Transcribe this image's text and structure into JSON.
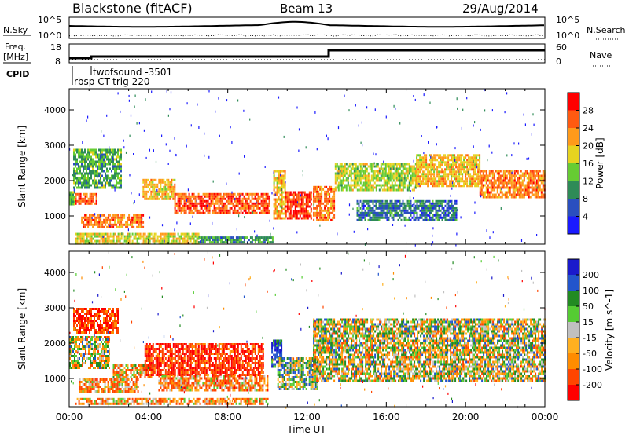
{
  "header": {
    "station": "Blackstone (fitACF)",
    "beam": "Beam 13",
    "date": "29/Aug/2014"
  },
  "noise_panel": {
    "left_label": "N.Sky",
    "left_ticks": [
      "10^5",
      "10^0"
    ],
    "right_ticks": [
      "10^5",
      "10^0"
    ],
    "right_label": "N.Search"
  },
  "freq_panel": {
    "left_label_1": "Freq.",
    "left_label_2": "[MHz]",
    "left_ticks": [
      "18",
      "8"
    ],
    "right_ticks": [
      "60",
      "0"
    ],
    "right_label": "Nave"
  },
  "cpid_panel": {
    "label": "CPID",
    "annotations": [
      "twofsound -3501",
      "rbsp CT-trig 220"
    ]
  },
  "colors": {
    "power_scale": [
      "#1a1aff",
      "#2a4fbf",
      "#2e8b57",
      "#66cc33",
      "#e6d31f",
      "#ff9a1a",
      "#ff5a10",
      "#ff0000"
    ],
    "velocity_scale": [
      "#1a1acc",
      "#2255cc",
      "#228b22",
      "#55cc33",
      "#c0c0c0",
      "#ffb020",
      "#ff8c00",
      "#ff4500",
      "#ff0000"
    ]
  },
  "chart_data": [
    {
      "type": "heatmap",
      "name": "power",
      "xlabel": "",
      "ylabel": "Slant Range [km]",
      "yticks": [
        "1000",
        "2000",
        "3000",
        "4000"
      ],
      "ylim": [
        200,
        4600
      ],
      "xlim": [
        0,
        24
      ],
      "colorbar": {
        "label": "Power [dB]",
        "ticks": [
          "4",
          "8",
          "12",
          "16",
          "20",
          "24",
          "28"
        ],
        "range": [
          0,
          32
        ]
      },
      "bands": [
        {
          "t0": 0.0,
          "t1": 0.3,
          "r0": 1300,
          "r1": 1700,
          "value": 14
        },
        {
          "t0": 0.3,
          "t1": 1.4,
          "r0": 1350,
          "r1": 1650,
          "value": 26
        },
        {
          "t0": 0.2,
          "t1": 2.6,
          "r0": 1800,
          "r1": 2900,
          "value": 12
        },
        {
          "t0": 0.6,
          "t1": 3.7,
          "r0": 650,
          "r1": 1050,
          "value": 24
        },
        {
          "t0": 0.3,
          "t1": 6.5,
          "r0": 200,
          "r1": 520,
          "value": 18
        },
        {
          "t0": 3.7,
          "t1": 5.3,
          "r0": 1450,
          "r1": 2050,
          "value": 20
        },
        {
          "t0": 5.3,
          "t1": 10.1,
          "r0": 1050,
          "r1": 1650,
          "value": 26
        },
        {
          "t0": 6.5,
          "t1": 10.3,
          "r0": 250,
          "r1": 420,
          "value": 10
        },
        {
          "t0": 10.3,
          "t1": 10.9,
          "r0": 950,
          "r1": 2300,
          "value": 20
        },
        {
          "t0": 10.9,
          "t1": 12.2,
          "r0": 900,
          "r1": 1700,
          "value": 28
        },
        {
          "t0": 12.3,
          "t1": 13.4,
          "r0": 850,
          "r1": 1850,
          "value": 24
        },
        {
          "t0": 13.4,
          "t1": 17.5,
          "r0": 1700,
          "r1": 2500,
          "value": 16
        },
        {
          "t0": 14.5,
          "t1": 19.5,
          "r0": 850,
          "r1": 1450,
          "value": 8
        },
        {
          "t0": 17.5,
          "t1": 20.7,
          "r0": 1850,
          "r1": 2750,
          "value": 20
        },
        {
          "t0": 20.7,
          "t1": 24.0,
          "r0": 1550,
          "r1": 2300,
          "value": 24
        }
      ]
    },
    {
      "type": "heatmap",
      "name": "velocity",
      "xlabel": "Time UT",
      "ylabel": "Slant Range [km]",
      "xticks": [
        "00:00",
        "04:00",
        "08:00",
        "12:00",
        "16:00",
        "20:00",
        "00:00"
      ],
      "yticks": [
        "1000",
        "2000",
        "3000",
        "4000"
      ],
      "ylim": [
        200,
        4600
      ],
      "xlim": [
        0,
        24
      ],
      "colorbar": {
        "label": "Velocity [m s^-1]",
        "ticks": [
          "200",
          "100",
          "50",
          "15",
          "-15",
          "-50",
          "-100",
          "-200"
        ]
      },
      "bands": [
        {
          "t0": 0.0,
          "t1": 2.0,
          "r0": 1300,
          "r1": 2200,
          "value": 0
        },
        {
          "t0": 0.2,
          "t1": 2.5,
          "r0": 2300,
          "r1": 3000,
          "value": -180
        },
        {
          "t0": 0.5,
          "t1": 3.5,
          "r0": 600,
          "r1": 1000,
          "value": -80
        },
        {
          "t0": 2.2,
          "t1": 4.2,
          "r0": 1000,
          "r1": 1400,
          "value": -60
        },
        {
          "t0": 3.8,
          "t1": 9.8,
          "r0": 1100,
          "r1": 2000,
          "value": -190
        },
        {
          "t0": 0.3,
          "t1": 10.0,
          "r0": 250,
          "r1": 450,
          "value": -70
        },
        {
          "t0": 4.5,
          "t1": 10.0,
          "r0": 650,
          "r1": 1100,
          "value": -90
        },
        {
          "t0": 10.2,
          "t1": 10.7,
          "r0": 1300,
          "r1": 2100,
          "value": 150
        },
        {
          "t0": 10.5,
          "t1": 12.5,
          "r0": 700,
          "r1": 1600,
          "value": 40
        },
        {
          "t0": 12.3,
          "t1": 24.0,
          "r0": 900,
          "r1": 2700,
          "value": 0
        }
      ]
    }
  ]
}
